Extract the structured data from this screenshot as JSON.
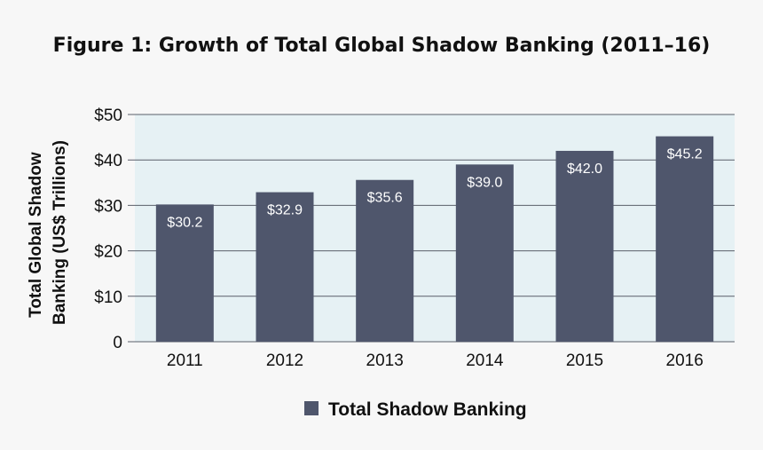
{
  "chart_data": {
    "type": "bar",
    "title": "Figure 1: Growth of Total Global Shadow Banking (2011–16)",
    "ylabel_lines": [
      "Total Global Shadow",
      "Banking (US$ Trillions)"
    ],
    "xlabel": "",
    "categories": [
      "2011",
      "2012",
      "2013",
      "2014",
      "2015",
      "2016"
    ],
    "series": [
      {
        "name": "Total Shadow Banking",
        "values": [
          30.2,
          32.9,
          35.6,
          39.0,
          42.0,
          45.2
        ],
        "labels": [
          "$30.2",
          "$32.9",
          "$35.6",
          "$39.0",
          "$42.0",
          "$45.2"
        ]
      }
    ],
    "ylim": [
      0,
      50
    ],
    "yticks": [
      0,
      10,
      20,
      30,
      40,
      50
    ],
    "ytick_labels": [
      "0",
      "$10",
      "$20",
      "$30",
      "$40",
      "$50"
    ],
    "grid": true,
    "legend_position": "bottom-center",
    "colors": {
      "bar": "#4f566c",
      "plot_bg": "#e6f1f4",
      "grid": "#5a5f6a",
      "page_bg": "#f7f7f7"
    }
  }
}
